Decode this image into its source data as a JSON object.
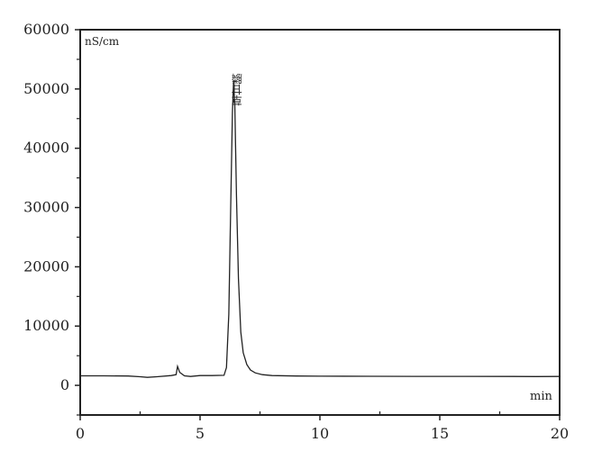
{
  "chart_data": {
    "type": "line",
    "title": "",
    "xlabel": "min",
    "ylabel": "nS/cm",
    "xlim": [
      0,
      20
    ],
    "ylim": [
      -5000,
      60000
    ],
    "x_ticks": [
      0,
      5,
      10,
      15,
      20
    ],
    "y_ticks": [
      0,
      10000,
      20000,
      30000,
      40000,
      50000,
      60000
    ],
    "grid": false,
    "line_color": "#222222",
    "annotations": [
      {
        "text": "草甘膦",
        "x": 6.4,
        "y": 51400
      }
    ],
    "series": [
      {
        "x": [
          0,
          1,
          2,
          2.5,
          2.8,
          3.2,
          3.8,
          4.0,
          4.06,
          4.15,
          4.35,
          4.6,
          5.0,
          5.5,
          6.0,
          6.1,
          6.2,
          6.28,
          6.35,
          6.4,
          6.45,
          6.52,
          6.6,
          6.7,
          6.8,
          6.95,
          7.1,
          7.3,
          7.6,
          8.0,
          9,
          10,
          12,
          14,
          16,
          18,
          19,
          20
        ],
        "y": [
          1600,
          1600,
          1580,
          1450,
          1350,
          1450,
          1650,
          1800,
          3200,
          2200,
          1600,
          1500,
          1650,
          1650,
          1700,
          3000,
          12000,
          30000,
          46000,
          51400,
          47000,
          32000,
          18000,
          9000,
          5500,
          3500,
          2600,
          2100,
          1800,
          1650,
          1580,
          1550,
          1530,
          1520,
          1510,
          1500,
          1480,
          1500
        ]
      }
    ]
  }
}
